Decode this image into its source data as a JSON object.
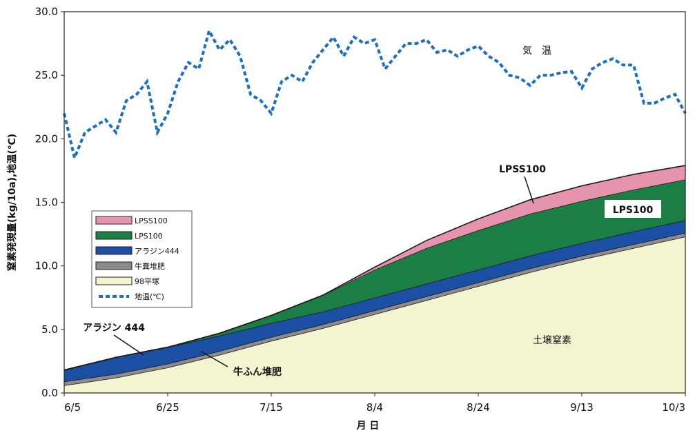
{
  "chart_data": {
    "type": "area",
    "xlabel": "月 日",
    "ylabel": "窒素発現量(kg/10a),地温(℃)",
    "ylim": [
      0,
      30
    ],
    "y_ticks": [
      "0.0",
      "5.0",
      "10.0",
      "15.0",
      "20.0",
      "25.0",
      "30.0"
    ],
    "x_tick_labels": [
      "6/5",
      "6/25",
      "7/15",
      "8/4",
      "8/24",
      "9/13",
      "10/3"
    ],
    "x_days": [
      0,
      10,
      20,
      30,
      40,
      50,
      60,
      70,
      80,
      90,
      100,
      110,
      120
    ],
    "stack_series": [
      {
        "name": "98平塚",
        "color": "#f2f5cf",
        "values": [
          0.6,
          1.2,
          2.0,
          3.0,
          4.1,
          5.1,
          6.2,
          7.3,
          8.4,
          9.5,
          10.5,
          11.4,
          12.3
        ]
      },
      {
        "name": "牛糞堆肥",
        "color": "#8c8c8c",
        "values": [
          0.3,
          0.3,
          0.3,
          0.3,
          0.3,
          0.3,
          0.3,
          0.3,
          0.3,
          0.3,
          0.3,
          0.3,
          0.3
        ]
      },
      {
        "name": "アラジン444",
        "color": "#1a4fa3",
        "values": [
          0.9,
          1.3,
          1.3,
          1.2,
          1.1,
          1.0,
          1.0,
          1.0,
          1.0,
          1.0,
          1.0,
          1.0,
          1.0
        ]
      },
      {
        "name": "LPS100",
        "color": "#1b7f45",
        "values": [
          0.0,
          0.0,
          0.0,
          0.2,
          0.6,
          1.3,
          2.2,
          2.8,
          3.1,
          3.3,
          3.3,
          3.3,
          3.2
        ]
      },
      {
        "name": "LPSS100",
        "color": "#e693ad",
        "values": [
          0.0,
          0.0,
          0.0,
          0.0,
          0.0,
          0.0,
          0.2,
          0.6,
          0.9,
          1.1,
          1.2,
          1.2,
          1.1
        ]
      }
    ],
    "temperature": {
      "name": "地温(℃)",
      "color": "#1c6fc2",
      "days": [
        0,
        2,
        4,
        6,
        8,
        10,
        12,
        14,
        16,
        18,
        20,
        22,
        24,
        26,
        28,
        30,
        32,
        34,
        36,
        38,
        40,
        42,
        44,
        46,
        48,
        50,
        52,
        54,
        56,
        58,
        60,
        62,
        64,
        66,
        68,
        70,
        72,
        74,
        76,
        78,
        80,
        82,
        84,
        86,
        88,
        90,
        92,
        94,
        96,
        98,
        100,
        102,
        104,
        106,
        108,
        110,
        112,
        114,
        116,
        118,
        120
      ],
      "values": [
        22.0,
        18.5,
        20.5,
        21.0,
        21.5,
        20.5,
        23.0,
        23.5,
        24.5,
        20.5,
        22.0,
        24.5,
        26.0,
        25.5,
        28.5,
        27.0,
        27.8,
        26.5,
        23.5,
        23.0,
        22.0,
        24.5,
        25.0,
        24.5,
        26.0,
        27.0,
        28.0,
        26.5,
        28.0,
        27.5,
        27.8,
        25.5,
        26.5,
        27.5,
        27.5,
        27.8,
        26.8,
        27.0,
        26.5,
        27.0,
        27.3,
        26.5,
        26.0,
        25.0,
        24.8,
        24.2,
        25.0,
        25.0,
        25.2,
        25.3,
        24.0,
        25.5,
        26.0,
        26.3,
        25.8,
        25.8,
        22.8,
        22.8,
        23.2,
        23.5,
        22.0
      ]
    },
    "annotations": {
      "air_temp": "気　温",
      "lpss100": "LPSS100",
      "lps100": "LPS100",
      "aladdin": "アラジン 444",
      "manure": "牛ふん堆肥",
      "soil_n": "土壌窒素"
    },
    "legend": {
      "position": "left-middle",
      "items": [
        {
          "label": "LPSS100",
          "color": "#e693ad",
          "kind": "area"
        },
        {
          "label": "LPS100",
          "color": "#1b7f45",
          "kind": "area"
        },
        {
          "label": "アラジン444",
          "color": "#1a4fa3",
          "kind": "area"
        },
        {
          "label": "牛糞堆肥",
          "color": "#8c8c8c",
          "kind": "area"
        },
        {
          "label": "98平塚",
          "color": "#f2f5cf",
          "kind": "area"
        },
        {
          "label": "地温(℃)",
          "color": "#1c6fc2",
          "kind": "dotted-line"
        }
      ]
    }
  }
}
